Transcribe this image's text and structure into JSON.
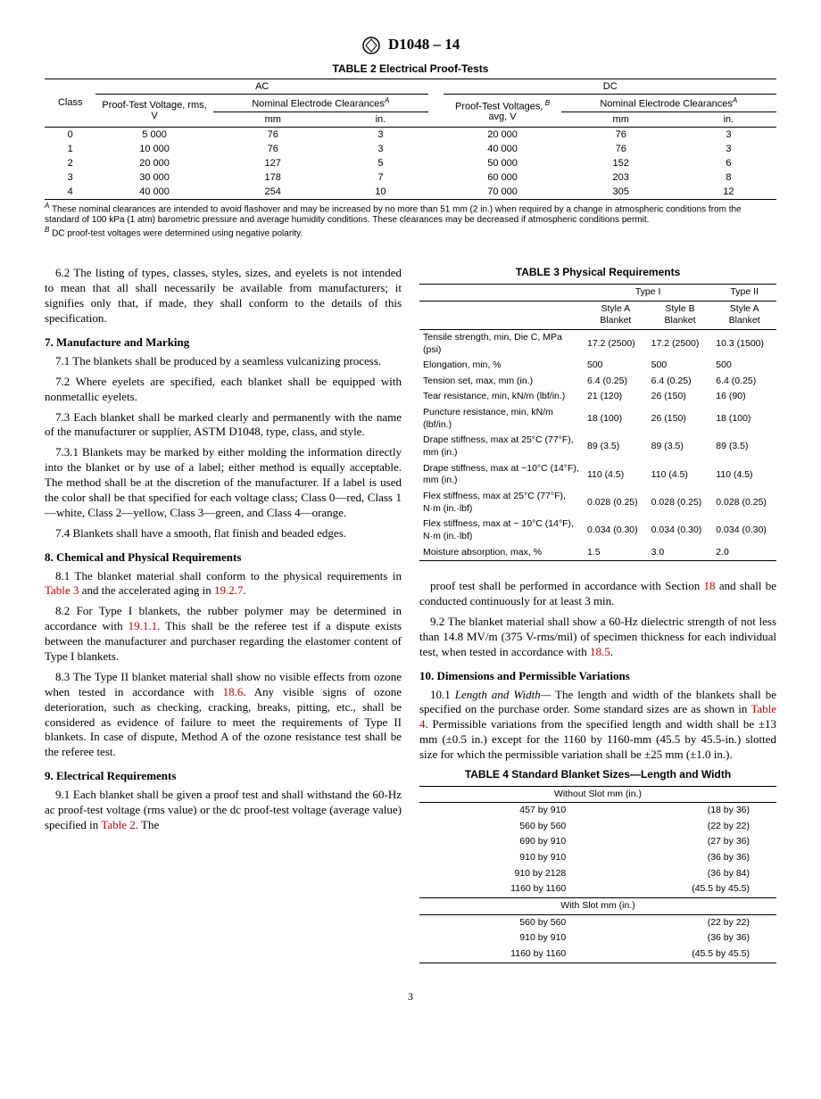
{
  "header": {
    "designation": "D1048 – 14"
  },
  "table2": {
    "caption": "TABLE 2 Electrical Proof-Tests",
    "groupHeaders": {
      "ac": "AC",
      "dc": "DC"
    },
    "colHeaders": {
      "class": "Class",
      "acVoltage": "Proof-Test Voltage, rms, V",
      "acClearance": "Nominal Electrode Clearances",
      "dcVoltage": "Proof-Test Voltages,",
      "dcVoltageSub": "avg, V",
      "dcClearance": "Nominal Electrode Clearances",
      "mm": "mm",
      "in": "in."
    },
    "rows": [
      {
        "class": "0",
        "acV": "5 000",
        "acMm": "76",
        "acIn": "3",
        "dcV": "20 000",
        "dcMm": "76",
        "dcIn": "3"
      },
      {
        "class": "1",
        "acV": "10 000",
        "acMm": "76",
        "acIn": "3",
        "dcV": "40 000",
        "dcMm": "76",
        "dcIn": "3"
      },
      {
        "class": "2",
        "acV": "20 000",
        "acMm": "127",
        "acIn": "5",
        "dcV": "50 000",
        "dcMm": "152",
        "dcIn": "6"
      },
      {
        "class": "3",
        "acV": "30 000",
        "acMm": "178",
        "acIn": "7",
        "dcV": "60 000",
        "dcMm": "203",
        "dcIn": "8"
      },
      {
        "class": "4",
        "acV": "40 000",
        "acMm": "254",
        "acIn": "10",
        "dcV": "70 000",
        "dcMm": "305",
        "dcIn": "12"
      }
    ],
    "footnoteA": "These nominal clearances are intended to avoid flashover and may be increased by no more than 51 mm (2 in.) when required by a change in atmospheric conditions from the standard of 100 kPa (1 atm) barometric pressure and average humidity conditions. These clearances may be decreased if atmospheric conditions permit.",
    "footnoteB": "DC proof-test voltages were determined using negative polarity."
  },
  "body": {
    "p62": "6.2 The listing of types, classes, styles, sizes, and eyelets is not intended to mean that all shall necessarily be available from manufacturers; it signifies only that, if made, they shall conform to the details of this specification.",
    "h7": "7. Manufacture and Marking",
    "p71": "7.1 The blankets shall be produced by a seamless vulcanizing process.",
    "p72": "7.2 Where eyelets are specified, each blanket shall be equipped with nonmetallic eyelets.",
    "p73": "7.3 Each blanket shall be marked clearly and permanently with the name of the manufacturer or supplier, ASTM D1048, type, class, and style.",
    "p731": "7.3.1 Blankets may be marked by either molding the information directly into the blanket or by use of a label; either method is equally acceptable. The method shall be at the discretion of the manufacturer. If a label is used the color shall be that specified for each voltage class; Class 0—red, Class 1—white, Class 2—yellow, Class 3—green, and Class 4—orange.",
    "p74": "7.4 Blankets shall have a smooth, flat finish and beaded edges.",
    "h8": "8. Chemical and Physical Requirements",
    "p81a": "8.1 The blanket material shall conform to the physical requirements in ",
    "p81b": " and the accelerated aging in ",
    "ref_t3": "Table 3",
    "ref_1927": "19.2.7",
    "p82a": "8.2 For Type I blankets, the rubber polymer may be determined in accordance with ",
    "ref_1911": "19.1.1",
    "p82b": ". This shall be the referee test if a dispute exists between the manufacturer and purchaser regarding the elastomer content of Type I blankets.",
    "p83a": "8.3 The Type II blanket material shall show no visible effects from ozone when tested in accordance with ",
    "ref_186": "18.6",
    "p83b": ". Any visible signs of ozone deterioration, such as checking, cracking, breaks, pitting, etc., shall be considered as evidence of failure to meet the requirements of Type II blankets. In case of dispute, Method A of the ozone resistance test shall be the referee test.",
    "h9": "9. Electrical Requirements",
    "p91a": "9.1 Each blanket shall be given a proof test and shall withstand the 60-Hz ac proof-test voltage (rms value) or the dc proof-test voltage (average value) specified in ",
    "ref_t2": "Table 2",
    "p91b": ". The",
    "p91c": "proof test shall be performed in accordance with Section ",
    "ref_18": "18",
    "p91d": " and shall be conducted continuously for at least 3 min.",
    "p92a": "9.2 The blanket material shall show a 60-Hz dielectric strength of not less than 14.8 MV/m (375 V-rms/mil) of specimen thickness for each individual test, when tested in accordance with ",
    "ref_185": "18.5",
    "h10": "10. Dimensions and Permissible Variations",
    "p101a": "Length and Width—",
    "p101b": " The length and width of the blankets shall be specified on the purchase order. Some standard sizes are as shown in ",
    "ref_t4": "Table 4",
    "p101c": ". Permissible variations from the specified length and width shall be ±13 mm (±0.5 in.) except for the 1160 by 1160-mm (45.5 by 45.5-in.) slotted size for which the permissible variation shall be ±25 mm (±1.0 in.)."
  },
  "table3": {
    "caption": "TABLE 3 Physical Requirements",
    "headers": {
      "typeI": "Type I",
      "typeII": "Type II",
      "styleA": "Style A Blanket",
      "styleB": "Style B Blanket"
    },
    "rows": [
      {
        "label": "Tensile strength, min, Die C, MPa (psi)",
        "a": "17.2 (2500)",
        "b": "17.2 (2500)",
        "c": "10.3 (1500)"
      },
      {
        "label": "Elongation, min, %",
        "a": "500",
        "b": "500",
        "c": "500"
      },
      {
        "label": "Tension set, max, mm (in.)",
        "a": "6.4 (0.25)",
        "b": "6.4 (0.25)",
        "c": "6.4 (0.25)"
      },
      {
        "label": "Tear resistance, min, kN/m (lbf/in.)",
        "a": "21 (120)",
        "b": "26 (150)",
        "c": "16 (90)"
      },
      {
        "label": "Puncture resistance, min, kN/m (lbf/in.)",
        "a": "18 (100)",
        "b": "26 (150)",
        "c": "18 (100)"
      },
      {
        "label": "Drape stiffness, max at 25°C (77°F), mm (in.)",
        "a": "89 (3.5)",
        "b": "89 (3.5)",
        "c": "89 (3.5)"
      },
      {
        "label": "Drape stiffness, max at −10°C (14°F), mm (in.)",
        "a": "110 (4.5)",
        "b": "110 (4.5)",
        "c": "110 (4.5)"
      },
      {
        "label": "Flex stiffness, max at 25°C (77°F), N·m (in.·lbf)",
        "a": "0.028 (0.25)",
        "b": "0.028 (0.25)",
        "c": "0.028 (0.25)"
      },
      {
        "label": "Flex stiffness, max at − 10°C (14°F), N·m (in.·lbf)",
        "a": "0.034 (0.30)",
        "b": "0.034 (0.30)",
        "c": "0.034 (0.30)"
      },
      {
        "label": "Moisture absorption, max, %",
        "a": "1.5",
        "b": "3.0",
        "c": "2.0"
      }
    ]
  },
  "table4": {
    "caption": "TABLE 4 Standard Blanket Sizes—Length and Width",
    "withoutSlot": "Without Slot mm (in.)",
    "withSlot": "With Slot mm (in.)",
    "rows1": [
      {
        "a": "457 by 910",
        "b": "(18 by 36)"
      },
      {
        "a": "560 by 560",
        "b": "(22 by 22)"
      },
      {
        "a": "690 by 910",
        "b": "(27 by 36)"
      },
      {
        "a": "910 by 910",
        "b": "(36 by 36)"
      },
      {
        "a": "910 by 2128",
        "b": "(36 by 84)"
      },
      {
        "a": "1160 by 1160",
        "b": "(45.5 by 45.5)"
      }
    ],
    "rows2": [
      {
        "a": "560 by 560",
        "b": "(22 by 22)"
      },
      {
        "a": "910 by 910",
        "b": "(36 by 36)"
      },
      {
        "a": "1160 by 1160",
        "b": "(45.5 by 45.5)"
      }
    ]
  },
  "pageNum": "3"
}
